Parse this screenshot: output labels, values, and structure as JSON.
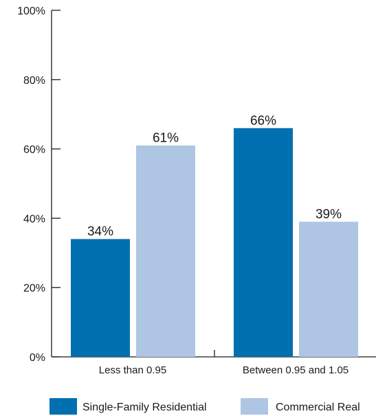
{
  "chart_data": {
    "type": "bar",
    "categories": [
      "Less than 0.95",
      "Between 0.95 and 1.05"
    ],
    "series": [
      {
        "name": "Single-Family Residential",
        "color": "#0070b0",
        "values": [
          34,
          66
        ],
        "labels": [
          "34%",
          "66%"
        ]
      },
      {
        "name": "Commercial Real",
        "color": "#aec6e3",
        "values": [
          61,
          39
        ],
        "labels": [
          "61%",
          "39%"
        ]
      }
    ],
    "yticks": [
      "0%",
      "20%",
      "40%",
      "60%",
      "80%",
      "100%"
    ],
    "ylim": [
      0,
      100
    ],
    "grid": false,
    "legend_position": "bottom"
  }
}
